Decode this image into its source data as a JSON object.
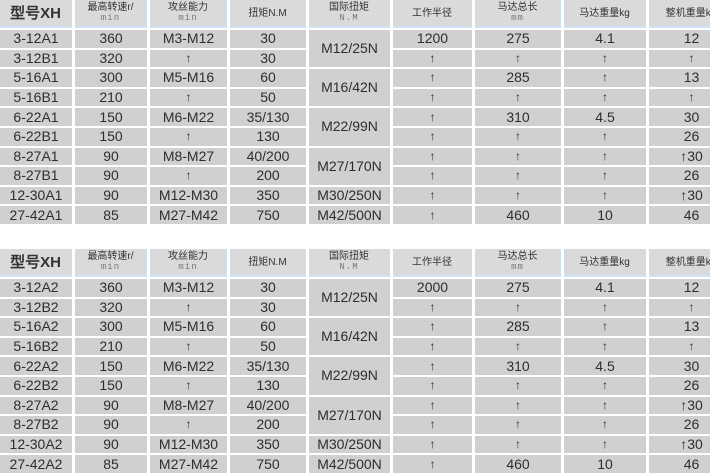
{
  "tables": [
    {
      "headers": [
        {
          "main": "型号XH",
          "sub": ""
        },
        {
          "main": "最高转速r/",
          "sub": "min"
        },
        {
          "main": "攻丝能力",
          "sub": "min"
        },
        {
          "main": "扭矩N.M",
          "sub": ""
        },
        {
          "main": "国际扭矩",
          "sub": "N.M"
        },
        {
          "main": "工作半径",
          "sub": ""
        },
        {
          "main": "马达总长",
          "sub": "mm"
        },
        {
          "main": "马达重量kg",
          "sub": ""
        },
        {
          "main": "整机重量kg",
          "sub": ""
        }
      ],
      "rows": [
        [
          "3-12A1",
          "360",
          "M3-M12",
          "30",
          "M12/25N",
          "1200",
          "275",
          "4.1",
          "12"
        ],
        [
          "3-12B1",
          "320",
          "↑",
          "30",
          null,
          "↑",
          "↑",
          "↑",
          "↑"
        ],
        [
          "5-16A1",
          "300",
          "M5-M16",
          "60",
          "M16/42N",
          "↑",
          "285",
          "↑",
          "13"
        ],
        [
          "5-16B1",
          "210",
          "↑",
          "50",
          null,
          "↑",
          "↑",
          "↑",
          "↑"
        ],
        [
          "6-22A1",
          "150",
          "M6-M22",
          "35/130",
          "M22/99N",
          "↑",
          "310",
          "4.5",
          "30"
        ],
        [
          "6-22B1",
          "150",
          "↑",
          "130",
          null,
          "↑",
          "↑",
          "↑",
          "26"
        ],
        [
          "8-27A1",
          "90",
          "M8-M27",
          "40/200",
          "M27/170N",
          "↑",
          "↑",
          "↑",
          "↑30"
        ],
        [
          "8-27B1",
          "90",
          "↑",
          "200",
          null,
          "↑",
          "↑",
          "↑",
          "26"
        ],
        [
          "12-30A1",
          "90",
          "M12-M30",
          "350",
          "M30/250N",
          "↑",
          "↑",
          "↑",
          "↑30"
        ],
        [
          "27-42A1",
          "85",
          "M27-M42",
          "750",
          "M42/500N",
          "↑",
          "460",
          "10",
          "46"
        ]
      ],
      "merged_torque_rows": [
        0,
        2,
        4,
        6
      ]
    },
    {
      "headers": [
        {
          "main": "型号XH",
          "sub": ""
        },
        {
          "main": "最高转速r/",
          "sub": "min"
        },
        {
          "main": "攻丝能力",
          "sub": "min"
        },
        {
          "main": "扭矩N.M",
          "sub": ""
        },
        {
          "main": "国际扭矩",
          "sub": "N.M"
        },
        {
          "main": "工作半径",
          "sub": ""
        },
        {
          "main": "马达总长",
          "sub": "mm"
        },
        {
          "main": "马达重量kg",
          "sub": ""
        },
        {
          "main": "整机重量kg",
          "sub": ""
        }
      ],
      "rows": [
        [
          "3-12A2",
          "360",
          "M3-M12",
          "30",
          "M12/25N",
          "2000",
          "275",
          "4.1",
          "12"
        ],
        [
          "3-12B2",
          "320",
          "↑",
          "30",
          null,
          "↑",
          "↑",
          "↑",
          "↑"
        ],
        [
          "5-16A2",
          "300",
          "M5-M16",
          "60",
          "M16/42N",
          "↑",
          "285",
          "↑",
          "13"
        ],
        [
          "5-16B2",
          "210",
          "↑",
          "50",
          null,
          "↑",
          "↑",
          "↑",
          "↑"
        ],
        [
          "6-22A2",
          "150",
          "M6-M22",
          "35/130",
          "M22/99N",
          "↑",
          "310",
          "4.5",
          "30"
        ],
        [
          "6-22B2",
          "150",
          "↑",
          "130",
          null,
          "↑",
          "↑",
          "↑",
          "26"
        ],
        [
          "8-27A2",
          "90",
          "M8-M27",
          "40/200",
          "M27/170N",
          "↑",
          "↑",
          "↑",
          "↑30"
        ],
        [
          "8-27B2",
          "90",
          "↑",
          "200",
          null,
          "↑",
          "↑",
          "↑",
          "26"
        ],
        [
          "12-30A2",
          "90",
          "M12-M30",
          "350",
          "M30/250N",
          "↑",
          "↑",
          "↑",
          "↑30"
        ],
        [
          "27-42A2",
          "85",
          "M27-M42",
          "750",
          "M42/500N",
          "↑",
          "460",
          "10",
          "46"
        ]
      ],
      "merged_torque_rows": [
        0,
        2,
        4,
        6
      ]
    }
  ],
  "colors": {
    "cell": "#d0d0d2",
    "header": "#d9dadc",
    "separator": "#cfe3f2",
    "text": "#2e2e2e"
  }
}
